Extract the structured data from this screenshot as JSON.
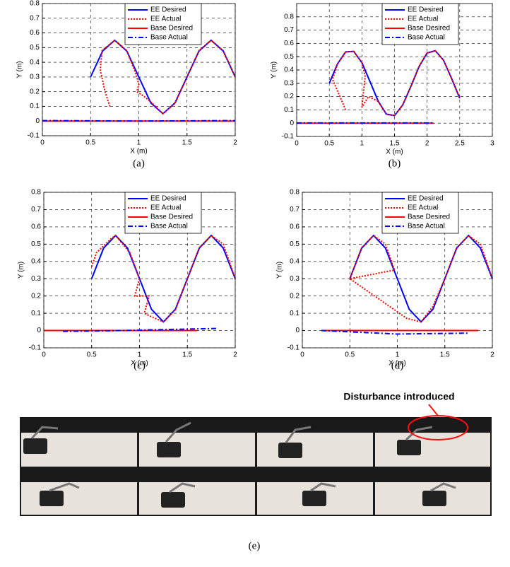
{
  "chart_data": [
    {
      "type": "line",
      "caption": "(a)",
      "xlabel": "X (m)",
      "ylabel": "Y (m)",
      "xlim": [
        0,
        2
      ],
      "ylim": [
        -0.1,
        0.8
      ],
      "xticks": [
        0,
        0.5,
        1,
        1.5,
        2
      ],
      "yticks": [
        -0.1,
        0,
        0.1,
        0.2,
        0.3,
        0.4,
        0.5,
        0.6,
        0.7,
        0.8
      ],
      "grid": true,
      "legend": "upper right",
      "series": [
        {
          "name": "EE Desired",
          "color": "#0000ff",
          "style": "solid",
          "x": [
            0.5,
            0.625,
            0.75,
            0.875,
            1,
            1.125,
            1.25,
            1.375,
            1.5,
            1.625,
            1.75,
            1.875,
            2
          ],
          "values": [
            0.3,
            0.477,
            0.55,
            0.477,
            0.3,
            0.123,
            0.05,
            0.123,
            0.3,
            0.477,
            0.55,
            0.477,
            0.3
          ]
        },
        {
          "name": "EE Actual",
          "color": "#ff0000",
          "style": "dotted",
          "x": [
            0.7,
            0.65,
            0.6,
            0.62,
            0.75,
            0.875,
            0.97,
            1,
            0.98,
            1.05,
            1.125,
            1.25,
            1.375,
            1.5,
            1.625,
            1.75,
            1.875,
            2
          ],
          "values": [
            0.1,
            0.2,
            0.35,
            0.48,
            0.55,
            0.48,
            0.32,
            0.25,
            0.2,
            0.17,
            0.13,
            0.05,
            0.12,
            0.3,
            0.48,
            0.55,
            0.48,
            0.3
          ]
        },
        {
          "name": "Base Desired",
          "color": "#ff0000",
          "style": "solid",
          "x": [
            0,
            2
          ],
          "values": [
            0,
            0
          ]
        },
        {
          "name": "Base Actual",
          "color": "#0000ff",
          "style": "dashdot",
          "x": [
            0,
            1,
            2
          ],
          "values": [
            0.003,
            0,
            0.003
          ]
        }
      ]
    },
    {
      "type": "line",
      "caption": "(b)",
      "xlabel": "X (m)",
      "ylabel": "Y (m)",
      "xlim": [
        0,
        3
      ],
      "ylim": [
        -0.1,
        0.9
      ],
      "xticks": [
        0,
        0.5,
        1,
        1.5,
        2,
        2.5,
        3
      ],
      "yticks": [
        -0.1,
        0,
        0.1,
        0.2,
        0.3,
        0.4,
        0.5,
        0.6,
        0.7,
        0.8
      ],
      "grid": true,
      "legend": "upper right",
      "series": [
        {
          "name": "EE Desired",
          "color": "#0000ff",
          "style": "solid",
          "x": [
            0.5,
            0.625,
            0.75,
            0.875,
            1,
            1.125,
            1.25,
            1.375,
            1.5,
            1.625,
            1.75,
            1.875,
            2,
            2.125,
            2.25,
            2.375,
            2.5
          ],
          "values": [
            0.3,
            0.445,
            0.536,
            0.54,
            0.455,
            0.312,
            0.165,
            0.068,
            0.057,
            0.136,
            0.275,
            0.424,
            0.528,
            0.545,
            0.475,
            0.337,
            0.187
          ]
        },
        {
          "name": "EE Actual",
          "color": "#ff0000",
          "style": "dotted",
          "x": [
            0.75,
            0.62,
            0.55,
            0.625,
            0.75,
            0.875,
            1,
            1.05,
            1,
            1.1,
            1.25,
            1.375,
            1.5,
            1.625,
            1.75,
            1.875,
            2,
            2.125,
            2.25,
            2.375,
            2.5
          ],
          "values": [
            0.1,
            0.25,
            0.33,
            0.445,
            0.536,
            0.54,
            0.455,
            0.35,
            0.12,
            0.2,
            0.165,
            0.068,
            0.057,
            0.136,
            0.275,
            0.424,
            0.528,
            0.545,
            0.475,
            0.337,
            0.187
          ]
        },
        {
          "name": "Base Desired",
          "color": "#ff0000",
          "style": "solid",
          "x": [
            0,
            2.1
          ],
          "values": [
            0,
            0
          ]
        },
        {
          "name": "Base Actual",
          "color": "#0000ff",
          "style": "dashdot",
          "x": [
            0,
            2.1
          ],
          "values": [
            0.002,
            0.002
          ]
        }
      ]
    },
    {
      "type": "line",
      "caption": "(c)",
      "xlabel": "X (m)",
      "ylabel": "Y (m)",
      "xlim": [
        0,
        2
      ],
      "ylim": [
        -0.1,
        0.8
      ],
      "xticks": [
        0,
        0.5,
        1,
        1.5,
        2
      ],
      "yticks": [
        -0.1,
        0,
        0.1,
        0.2,
        0.3,
        0.4,
        0.5,
        0.6,
        0.7,
        0.8
      ],
      "grid": true,
      "legend": "upper right",
      "series": [
        {
          "name": "EE Desired",
          "color": "#0000ff",
          "style": "solid",
          "x": [
            0.5,
            0.625,
            0.75,
            0.875,
            1,
            1.125,
            1.25,
            1.375,
            1.5,
            1.625,
            1.75,
            1.875,
            2
          ],
          "values": [
            0.3,
            0.477,
            0.55,
            0.477,
            0.3,
            0.123,
            0.05,
            0.123,
            0.3,
            0.477,
            0.55,
            0.477,
            0.3
          ]
        },
        {
          "name": "EE Actual",
          "color": "#ff0000",
          "style": "dotted",
          "x": [
            0.5,
            0.55,
            0.7,
            0.75,
            0.9,
            1,
            0.95,
            1,
            1.1,
            1.05,
            1.125,
            1.25,
            1.375,
            1.5,
            1.625,
            1.75,
            1.875,
            2
          ],
          "values": [
            0.37,
            0.45,
            0.53,
            0.55,
            0.45,
            0.3,
            0.2,
            0.2,
            0.2,
            0.1,
            0.08,
            0.05,
            0.12,
            0.3,
            0.48,
            0.55,
            0.5,
            0.3
          ]
        },
        {
          "name": "Base Desired",
          "color": "#ff0000",
          "style": "solid",
          "x": [
            0,
            1.6
          ],
          "values": [
            0,
            0
          ]
        },
        {
          "name": "Base Actual",
          "color": "#0000ff",
          "style": "dashdot",
          "x": [
            0.2,
            0.8,
            1.2,
            1.8
          ],
          "values": [
            -0.005,
            0,
            0.005,
            0.012
          ]
        }
      ]
    },
    {
      "type": "line",
      "caption": "(d)",
      "xlabel": "X (m)",
      "ylabel": "Y (m)",
      "xlim": [
        0,
        2
      ],
      "ylim": [
        -0.1,
        0.8
      ],
      "xticks": [
        0,
        0.5,
        1,
        1.5,
        2
      ],
      "yticks": [
        -0.1,
        0,
        0.1,
        0.2,
        0.3,
        0.4,
        0.5,
        0.6,
        0.7,
        0.8
      ],
      "grid": true,
      "legend": "upper right",
      "series": [
        {
          "name": "EE Desired",
          "color": "#0000ff",
          "style": "solid",
          "x": [
            0.5,
            0.625,
            0.75,
            0.875,
            1,
            1.125,
            1.25,
            1.375,
            1.5,
            1.625,
            1.75,
            1.875,
            2
          ],
          "values": [
            0.3,
            0.477,
            0.55,
            0.477,
            0.3,
            0.123,
            0.05,
            0.123,
            0.3,
            0.477,
            0.55,
            0.477,
            0.3
          ]
        },
        {
          "name": "EE Actual",
          "color": "#ff0000",
          "style": "dotted",
          "x": [
            0.5,
            0.625,
            0.75,
            0.875,
            0.97,
            0.5,
            1.1,
            1.25,
            1.375,
            1.5,
            1.625,
            1.75,
            1.875,
            2
          ],
          "values": [
            0.3,
            0.48,
            0.55,
            0.5,
            0.35,
            0.3,
            0.07,
            0.05,
            0.14,
            0.3,
            0.48,
            0.55,
            0.5,
            0.3
          ]
        },
        {
          "name": "Base Desired",
          "color": "#ff0000",
          "style": "solid",
          "x": [
            0.2,
            1.85
          ],
          "values": [
            0,
            0
          ]
        },
        {
          "name": "Base Actual",
          "color": "#0000ff",
          "style": "dashdot",
          "x": [
            0.2,
            1,
            1.75
          ],
          "values": [
            0,
            -0.02,
            -0.015
          ]
        }
      ]
    }
  ],
  "photo": {
    "annotation": "Disturbance introduced",
    "caption": "(e)"
  }
}
